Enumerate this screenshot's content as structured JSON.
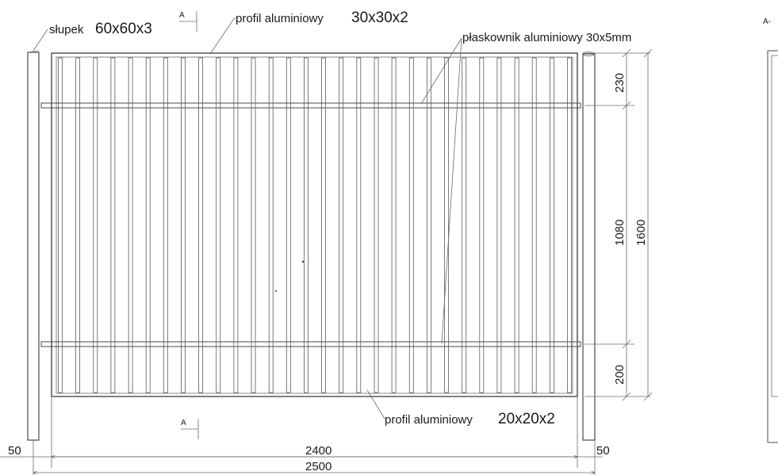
{
  "labels": {
    "post_name": "słupek",
    "post_size": "60x60x3",
    "top_profile_name": "profil aluminiowy",
    "top_profile_size": "30x30x2",
    "flat_bar": "płaskownik aluminiowy 30x5mm",
    "bottom_profile_name": "profil aluminiowy",
    "bottom_profile_size": "20x20x2",
    "section_mark": "A",
    "section_side": "A-"
  },
  "dimensions": {
    "top_band": "230",
    "middle": "1080",
    "total_height": "1600",
    "bottom_band": "200",
    "inner_width": "2400",
    "overall_width": "2500",
    "left_gap": "50",
    "right_gap": "50"
  },
  "fence": {
    "picket_count": 30
  },
  "colors": {
    "line": "#4a4a4a",
    "text": "#1a1a1a",
    "background": "#ffffff"
  }
}
